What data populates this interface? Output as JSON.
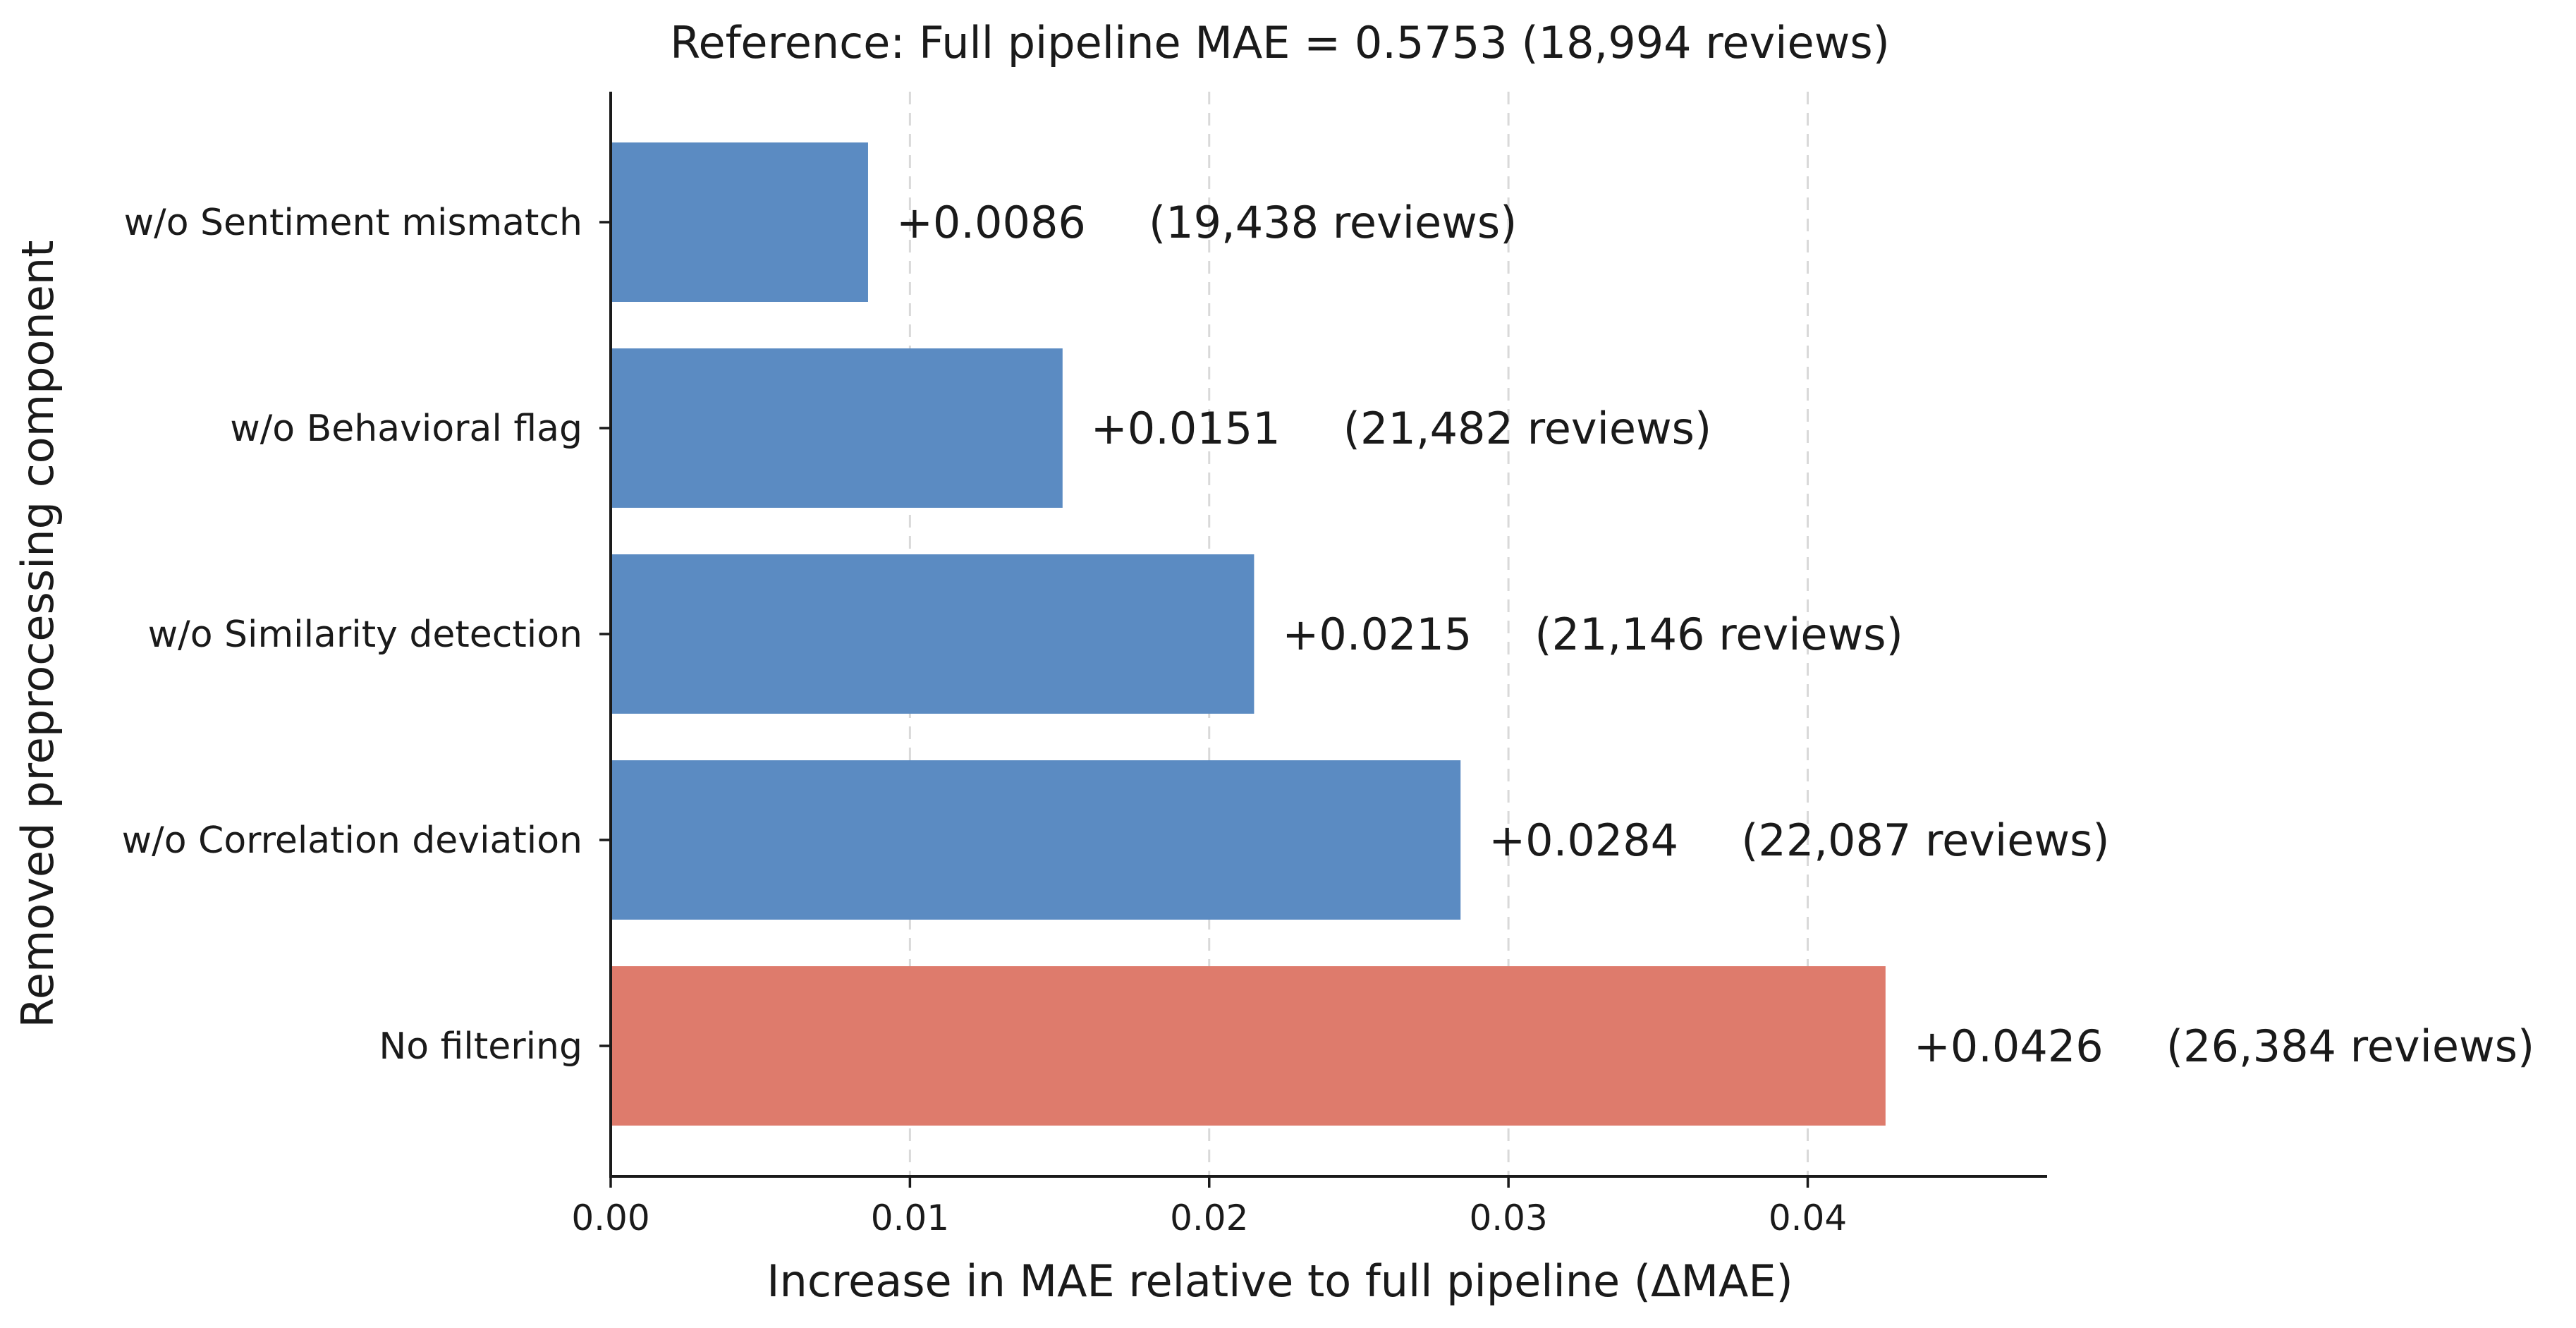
{
  "chart_data": {
    "type": "bar",
    "orientation": "horizontal",
    "title": "Reference: Full pipeline MAE = 0.5753 (18,994 reviews)",
    "xlabel": "Increase in MAE relative to full pipeline (ΔMAE)",
    "ylabel": "Removed preprocessing component",
    "xlim": [
      0,
      0.048
    ],
    "xticks": [
      0.0,
      0.01,
      0.02,
      0.03,
      0.04
    ],
    "xtick_labels": [
      "0.00",
      "0.01",
      "0.02",
      "0.03",
      "0.04"
    ],
    "grid": "x, dashed",
    "categories": [
      "w/o Sentiment mismatch",
      "w/o Behavioral flag",
      "w/o Similarity detection",
      "w/o Correlation deviation",
      "No filtering"
    ],
    "values": [
      0.0086,
      0.0151,
      0.0215,
      0.0284,
      0.0426
    ],
    "value_labels": [
      "+0.0086",
      "+0.0151",
      "+0.0215",
      "+0.0284",
      "+0.0426"
    ],
    "review_labels": [
      "(19,438 reviews)",
      "(21,482 reviews)",
      "(21,146 reviews)",
      "(22,087 reviews)",
      "(26,384 reviews)"
    ],
    "colors": [
      "#5b8bc2",
      "#5b8bc2",
      "#5b8bc2",
      "#5b8bc2",
      "#de7b6c"
    ]
  }
}
